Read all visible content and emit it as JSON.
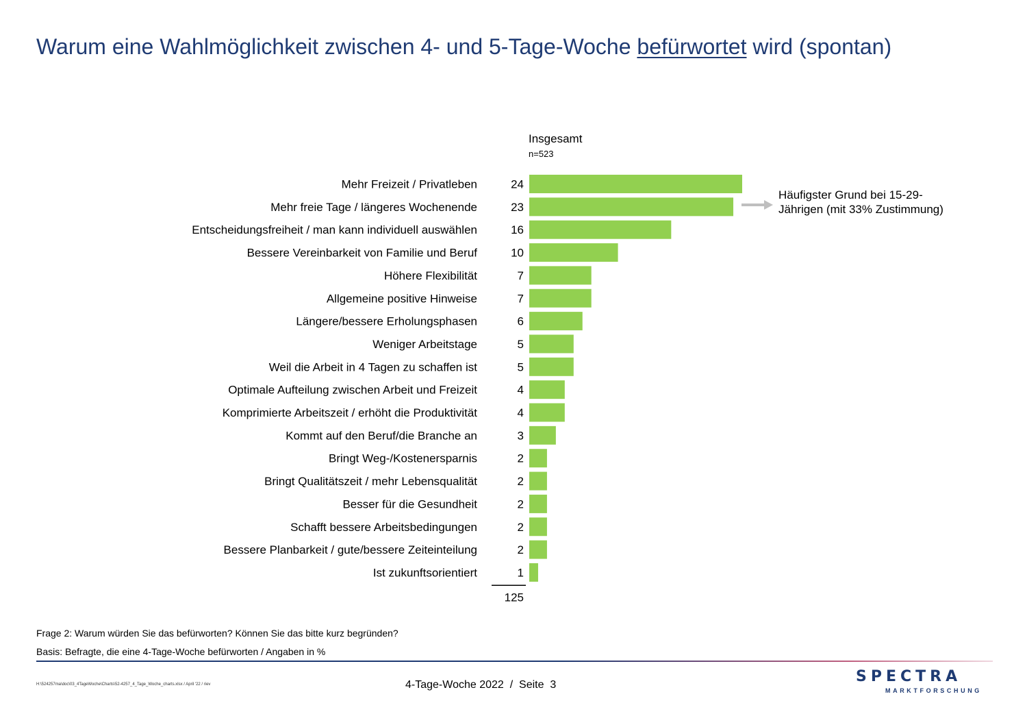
{
  "title": {
    "before": "Warum eine Wahlmöglichkeit zwischen 4- und 5-Tage-Woche ",
    "underlined": "befürwortet",
    "after": " wird (spontan)"
  },
  "column": {
    "header": "Insgesamt",
    "base": "n=523"
  },
  "annotation": {
    "line1": "Häufigster Grund bei 15-29-",
    "line2": "Jährigen (mit 33% Zustimmung)"
  },
  "colors": {
    "bar": "#92d050",
    "title": "#1f3b73",
    "arrow": "#bfbfbf"
  },
  "chart_data": {
    "type": "bar",
    "orientation": "horizontal",
    "categories": [
      "Mehr Freizeit / Privatleben",
      "Mehr freie Tage / längeres Wochenende",
      "Entscheidungsfreiheit / man kann individuell auswählen",
      "Bessere Vereinbarkeit von Familie und Beruf",
      "Höhere Flexibilität",
      "Allgemeine positive Hinweise",
      "Längere/bessere Erholungsphasen",
      "Weniger Arbeitstage",
      "Weil die Arbeit in 4 Tagen zu schaffen ist",
      "Optimale Aufteilung zwischen Arbeit und Freizeit",
      "Komprimierte Arbeitszeit / erhöht die Produktivität",
      "Kommt auf den Beruf/die Branche an",
      "Bringt Weg-/Kostenersparnis",
      "Bringt Qualitätszeit / mehr Lebensqualität",
      "Besser für die Gesundheit",
      "Schafft bessere Arbeitsbedingungen",
      "Bessere Planbarkeit / gute/bessere Zeiteinteilung",
      "Ist zukunftsorientiert"
    ],
    "values": [
      24,
      23,
      16,
      10,
      7,
      7,
      6,
      5,
      5,
      4,
      4,
      3,
      2,
      2,
      2,
      2,
      2,
      1
    ],
    "total": "125",
    "xlim": [
      0,
      24
    ],
    "grid": false,
    "legend": "none"
  },
  "footnotes": {
    "question": "Frage 2: Warum würden Sie das befürworten? Können Sie das bitte kurz begründen?",
    "basis": "Basis: Befragte, die eine 4-Tage-Woche befürworten / Angaben in %"
  },
  "footer": {
    "path": "H:\\524257ma\\doc\\03_4TageWoche\\Charts\\52-4257_4_Tage_Woche_charts.xlsx / April '22 / riev",
    "center": "4-Tage-Woche 2022  /  Seite  3",
    "logo": "SPECTRA",
    "logo_sub": "MARKTFORSCHUNG"
  }
}
